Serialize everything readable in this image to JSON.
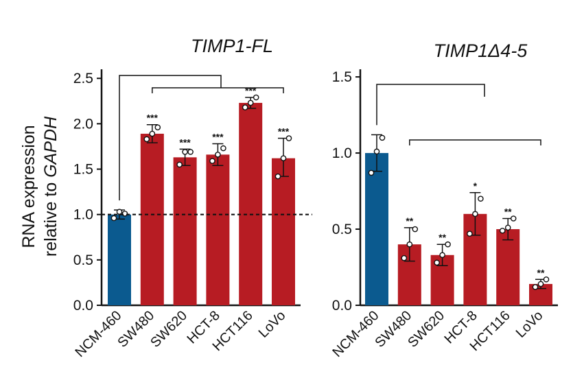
{
  "figure": {
    "ylabel_line1": "RNA expression",
    "ylabel_line2_prefix": "relative to ",
    "ylabel_line2_gene": "GAPDH"
  },
  "colors": {
    "control": "#0b5a8f",
    "cancer": "#b71c23",
    "axis": "#111111"
  },
  "chart_data": [
    {
      "type": "bar",
      "title": "TIMP1-FL",
      "categories": [
        "NCM-460",
        "SW480",
        "SW620",
        "HCT-8",
        "HCT116",
        "LoVo"
      ],
      "values": [
        1.0,
        1.89,
        1.63,
        1.66,
        2.23,
        1.62
      ],
      "error_upper": [
        1.05,
        1.99,
        1.72,
        1.78,
        2.29,
        1.84
      ],
      "error_lower": [
        0.95,
        1.79,
        1.54,
        1.54,
        2.17,
        1.42
      ],
      "points": [
        [
          0.96,
          1.03,
          1.01
        ],
        [
          1.83,
          1.89,
          1.96
        ],
        [
          1.55,
          1.69,
          1.69
        ],
        [
          1.59,
          1.66,
          1.73
        ],
        [
          2.18,
          2.23,
          2.29
        ],
        [
          1.42,
          1.62,
          1.84
        ]
      ],
      "significance": [
        "",
        "***",
        "***",
        "***",
        "***",
        "***"
      ],
      "reference_line": 1.0,
      "ylim": [
        0,
        2.6
      ],
      "yticks": [
        "0.0",
        "0.5",
        "1.0",
        "1.5",
        "2.0",
        "2.5"
      ],
      "xlabel": "",
      "ylabel": "RNA expression relative to GAPDH"
    },
    {
      "type": "bar",
      "title": "TIMP1Δ4-5",
      "categories": [
        "NCM-460",
        "SW480",
        "SW620",
        "HCT-8",
        "HCT116",
        "LoVo"
      ],
      "values": [
        1.0,
        0.4,
        0.33,
        0.6,
        0.5,
        0.14
      ],
      "error_upper": [
        1.12,
        0.51,
        0.4,
        0.74,
        0.57,
        0.17
      ],
      "error_lower": [
        0.88,
        0.29,
        0.26,
        0.46,
        0.43,
        0.11
      ],
      "points": [
        [
          0.87,
          1.01,
          1.1
        ],
        [
          0.31,
          0.4,
          0.5
        ],
        [
          0.28,
          0.33,
          0.4
        ],
        [
          0.47,
          0.6,
          0.7
        ],
        [
          0.49,
          0.51,
          0.57
        ],
        [
          0.12,
          0.14,
          0.17
        ]
      ],
      "significance": [
        "",
        "**",
        "**",
        "*",
        "**",
        "**"
      ],
      "ylim": [
        0,
        1.55
      ],
      "yticks": [
        "0.0",
        "0.5",
        "1.0",
        "1.5"
      ],
      "xlabel": "",
      "ylabel": ""
    }
  ]
}
